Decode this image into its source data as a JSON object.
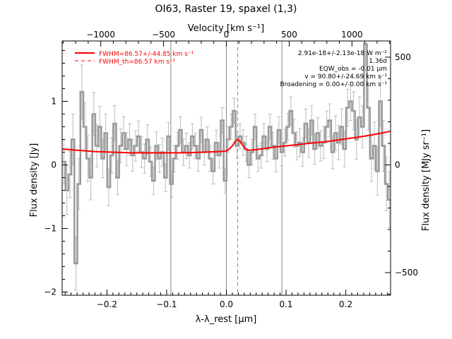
{
  "chart_data": {
    "type": "line",
    "title": "OI63, Raster 19, spaxel (1,3)",
    "xlabel": "λ-λ_rest [μm]",
    "ylabel": "Flux density [Jy]",
    "top_axis_label": "Velocity [km s⁻¹]",
    "right_axis_label": "Flux density [MJy sr⁻¹]",
    "xlim": [
      -0.275,
      0.275
    ],
    "ylim": [
      -2.05,
      1.95
    ],
    "x_ticks": [
      -0.2,
      -0.1,
      0.0,
      0.1,
      0.2
    ],
    "x_tick_labels": [
      "-0.2",
      "-0.1",
      "0.0",
      "0.1",
      "0.2"
    ],
    "y_ticks": [
      -2,
      -1,
      0,
      1
    ],
    "y_tick_labels": [
      "-2",
      "-1",
      "0",
      "1"
    ],
    "top_ticks_kms": [
      -1000,
      -500,
      0,
      500,
      1000
    ],
    "top_tick_labels": [
      "-1000",
      "-500",
      "0",
      "500",
      "1000"
    ],
    "kms_per_um": 4754,
    "right_ticks_mjy": [
      -500,
      0,
      500
    ],
    "right_tick_labels": [
      "-500",
      "0",
      "500"
    ],
    "jy_to_mjysr": 295,
    "vertical_lines_x": [
      -0.093,
      0.0,
      0.093
    ],
    "dashed_line_x": 0.019,
    "legend": {
      "placement": "top-left",
      "entries": [
        {
          "label": "FWHM=86.57+/-44.85 km s⁻¹",
          "style": "solid",
          "color": "#ff0000"
        },
        {
          "label": "FWHM_th=86.57 km s⁻¹",
          "style": "dashed",
          "color": "#ff0000"
        }
      ]
    },
    "annotations": [
      "2.91e-18+/-2.13e-18 W m⁻²",
      "1.36σ",
      "EQW_obs = -0.01 μm",
      "v = 90.80+/-24.69 km s⁻¹",
      "Broadening = 0.00+/-0.00 km s⁻¹"
    ],
    "series": [
      {
        "style": "step",
        "color": "#999999",
        "x": [
          -0.272,
          -0.267,
          -0.262,
          -0.257,
          -0.252,
          -0.247,
          -0.242,
          -0.237,
          -0.232,
          -0.227,
          -0.222,
          -0.217,
          -0.212,
          -0.207,
          -0.202,
          -0.197,
          -0.192,
          -0.187,
          -0.182,
          -0.177,
          -0.172,
          -0.167,
          -0.162,
          -0.157,
          -0.152,
          -0.147,
          -0.142,
          -0.137,
          -0.132,
          -0.127,
          -0.122,
          -0.117,
          -0.112,
          -0.107,
          -0.102,
          -0.097,
          -0.092,
          -0.087,
          -0.082,
          -0.077,
          -0.072,
          -0.067,
          -0.062,
          -0.057,
          -0.052,
          -0.047,
          -0.042,
          -0.037,
          -0.032,
          -0.027,
          -0.022,
          -0.017,
          -0.012,
          -0.007,
          -0.002,
          0.003,
          0.008,
          0.013,
          0.018,
          0.023,
          0.028,
          0.033,
          0.038,
          0.043,
          0.048,
          0.053,
          0.058,
          0.063,
          0.068,
          0.073,
          0.078,
          0.083,
          0.088,
          0.093,
          0.098,
          0.103,
          0.108,
          0.113,
          0.118,
          0.123,
          0.128,
          0.133,
          0.138,
          0.143,
          0.148,
          0.153,
          0.158,
          0.163,
          0.168,
          0.173,
          0.178,
          0.183,
          0.188,
          0.193,
          0.198,
          0.203,
          0.208,
          0.213,
          0.218,
          0.223,
          0.228,
          0.233,
          0.238,
          0.243,
          0.248,
          0.253,
          0.258,
          0.263,
          0.268,
          0.273
        ],
        "y": [
          0.05,
          -0.4,
          -0.15,
          0.4,
          -1.55,
          -0.3,
          1.15,
          0.6,
          0.1,
          -0.2,
          0.8,
          0.3,
          0.6,
          0.1,
          0.5,
          -0.35,
          0.15,
          0.65,
          -0.2,
          0.3,
          0.5,
          0.25,
          0.4,
          0.15,
          0.3,
          0.45,
          0.2,
          0.1,
          0.4,
          0.05,
          -0.25,
          0.3,
          0.1,
          0.2,
          -0.2,
          0.45,
          -0.3,
          0.1,
          0.3,
          0.55,
          0.2,
          0.3,
          0.15,
          0.45,
          0.3,
          0.1,
          0.55,
          0.2,
          0.4,
          0.1,
          -0.1,
          0.35,
          0.15,
          0.7,
          -0.25,
          0.4,
          0.6,
          0.85,
          0.3,
          0.45,
          0.35,
          0.25,
          0.0,
          0.2,
          0.6,
          0.1,
          0.15,
          0.45,
          0.25,
          0.6,
          0.3,
          0.1,
          0.55,
          0.2,
          0.35,
          0.6,
          0.85,
          0.5,
          0.3,
          0.35,
          0.2,
          0.65,
          0.35,
          0.7,
          0.25,
          0.5,
          0.3,
          0.35,
          0.6,
          0.7,
          0.2,
          0.5,
          0.35,
          0.6,
          0.25,
          0.9,
          1.0,
          0.85,
          0.4,
          0.75,
          0.6,
          1.9,
          0.9,
          0.1,
          0.3,
          -0.1,
          1.0,
          0.3,
          -0.3,
          -0.55
        ],
        "error": [
          0.35,
          0.38,
          0.36,
          0.4,
          0.42,
          0.4,
          0.42,
          0.38,
          0.36,
          0.35,
          0.34,
          0.33,
          0.32,
          0.3,
          0.3,
          0.29,
          0.28,
          0.28,
          0.27,
          0.27,
          0.26,
          0.26,
          0.25,
          0.25,
          0.24,
          0.24,
          0.24,
          0.23,
          0.23,
          0.23,
          0.22,
          0.22,
          0.22,
          0.22,
          0.22,
          0.22,
          0.21,
          0.21,
          0.21,
          0.21,
          0.21,
          0.2,
          0.2,
          0.2,
          0.2,
          0.2,
          0.2,
          0.2,
          0.2,
          0.2,
          0.2,
          0.2,
          0.2,
          0.2,
          0.2,
          0.2,
          0.2,
          0.2,
          0.2,
          0.2,
          0.2,
          0.2,
          0.2,
          0.2,
          0.2,
          0.2,
          0.2,
          0.2,
          0.2,
          0.2,
          0.21,
          0.21,
          0.21,
          0.21,
          0.21,
          0.21,
          0.22,
          0.22,
          0.22,
          0.22,
          0.22,
          0.23,
          0.23,
          0.23,
          0.24,
          0.24,
          0.24,
          0.25,
          0.25,
          0.26,
          0.26,
          0.27,
          0.27,
          0.28,
          0.28,
          0.29,
          0.3,
          0.3,
          0.31,
          0.32,
          0.33,
          0.34,
          0.35,
          0.36,
          0.37,
          0.38,
          0.39,
          0.4,
          0.42,
          0.44
        ]
      },
      {
        "style": "line",
        "color": "#ff0000",
        "x": [
          -0.275,
          -0.25,
          -0.22,
          -0.19,
          -0.16,
          -0.13,
          -0.1,
          -0.07,
          -0.04,
          -0.01,
          0.0,
          0.005,
          0.01,
          0.015,
          0.019,
          0.023,
          0.028,
          0.033,
          0.038,
          0.05,
          0.08,
          0.11,
          0.14,
          0.17,
          0.2,
          0.23,
          0.26,
          0.275
        ],
        "y": [
          0.25,
          0.23,
          0.21,
          0.2,
          0.19,
          0.19,
          0.19,
          0.19,
          0.2,
          0.21,
          0.22,
          0.25,
          0.3,
          0.37,
          0.4,
          0.37,
          0.3,
          0.24,
          0.23,
          0.24,
          0.28,
          0.31,
          0.34,
          0.37,
          0.41,
          0.45,
          0.5,
          0.53
        ]
      }
    ]
  }
}
